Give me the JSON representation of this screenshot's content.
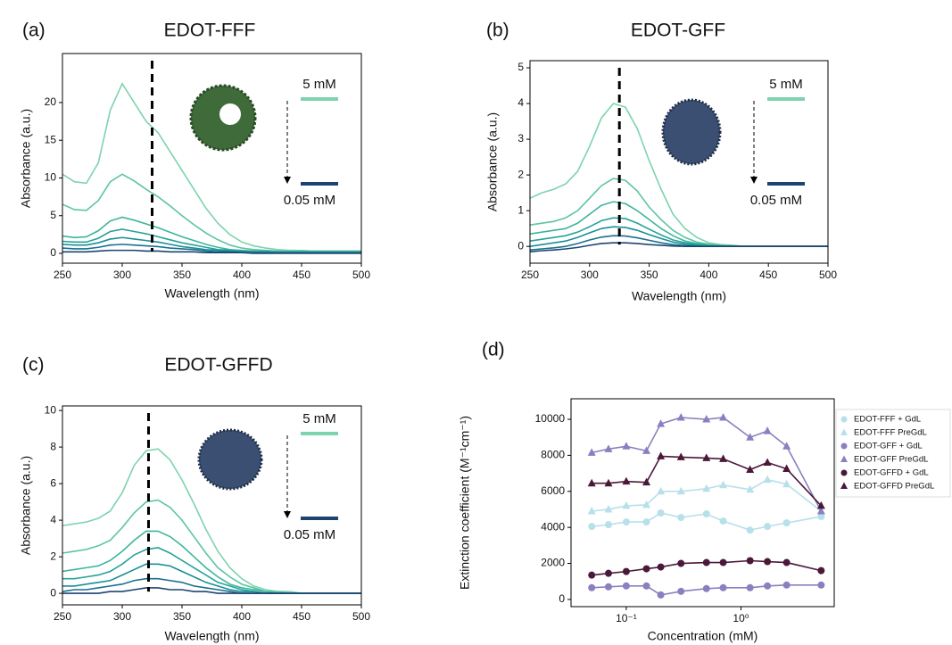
{
  "chart_data": [
    {
      "type": "line",
      "panel": "(a)",
      "title": "EDOT-FFF",
      "x_label": "Wavelength (nm)",
      "y_label": "Absorbance (a.u.)",
      "x": [
        250,
        260,
        270,
        280,
        290,
        300,
        310,
        320,
        330,
        340,
        350,
        360,
        370,
        380,
        390,
        400,
        410,
        420,
        430,
        440,
        450,
        460,
        470,
        480,
        490,
        500
      ],
      "xlim": [
        250,
        500
      ],
      "xticks": [
        250,
        300,
        350,
        400,
        450,
        500
      ],
      "ylim": [
        -1.3,
        26.5
      ],
      "yticks": [
        0,
        5,
        10,
        15,
        20
      ],
      "marker_x": 325,
      "high_label": "5 mM",
      "low_label": "0.05 mM",
      "series": [
        {
          "color": "#7dd3ad",
          "values": [
            10.5,
            9.5,
            9.3,
            12,
            19,
            22.5,
            20,
            17.5,
            16,
            13.5,
            11,
            8.5,
            6,
            4,
            2.5,
            1.5,
            1,
            0.7,
            0.5,
            0.4,
            0.4,
            0.3,
            0.3,
            0.3,
            0.3,
            0.3
          ]
        },
        {
          "color": "#5cc4a2",
          "values": [
            6.5,
            5.8,
            5.7,
            7,
            9.5,
            10.5,
            9.6,
            8.5,
            7.5,
            6.3,
            5,
            3.8,
            2.7,
            1.8,
            1.1,
            0.7,
            0.5,
            0.4,
            0.3,
            0.3,
            0.3,
            0.3,
            0.3,
            0.3,
            0.3,
            0.3
          ]
        },
        {
          "color": "#3db59b",
          "values": [
            2.3,
            2.1,
            2.2,
            3,
            4.3,
            4.8,
            4.4,
            3.9,
            3.4,
            2.8,
            2.2,
            1.7,
            1.2,
            0.8,
            0.5,
            0.4,
            0.3,
            0.3,
            0.2,
            0.2,
            0.2,
            0.2,
            0.2,
            0.2,
            0.2,
            0.2
          ]
        },
        {
          "color": "#25a39a",
          "values": [
            1.6,
            1.5,
            1.5,
            2,
            2.9,
            3.2,
            2.9,
            2.6,
            2.2,
            1.8,
            1.4,
            1.1,
            0.8,
            0.5,
            0.4,
            0.3,
            0.2,
            0.2,
            0.2,
            0.2,
            0.2,
            0.2,
            0.2,
            0.2,
            0.2,
            0.2
          ]
        },
        {
          "color": "#1a8f97",
          "values": [
            1.2,
            1.1,
            1.1,
            1.4,
            1.9,
            2.1,
            1.9,
            1.7,
            1.5,
            1.2,
            0.9,
            0.7,
            0.5,
            0.4,
            0.3,
            0.2,
            0.2,
            0.2,
            0.1,
            0.1,
            0.1,
            0.1,
            0.1,
            0.1,
            0.1,
            0.1
          ]
        },
        {
          "color": "#1b6f8f",
          "values": [
            0.7,
            0.6,
            0.6,
            0.8,
            1.1,
            1.2,
            1.1,
            1,
            0.9,
            0.7,
            0.6,
            0.5,
            0.3,
            0.2,
            0.2,
            0.1,
            0.1,
            0.1,
            0.1,
            0.1,
            0.1,
            0.1,
            0.1,
            0.1,
            0.1,
            0.1
          ]
        },
        {
          "color": "#1d4470",
          "values": [
            0.2,
            0.2,
            0.2,
            0.3,
            0.4,
            0.4,
            0.4,
            0.3,
            0.3,
            0.2,
            0.2,
            0.2,
            0.1,
            0.1,
            0.1,
            0.1,
            0,
            0,
            0,
            0,
            0,
            0,
            0,
            0,
            0,
            0
          ]
        }
      ]
    },
    {
      "type": "line",
      "panel": "(b)",
      "title": "EDOT-GFF",
      "x_label": "Wavelength (nm)",
      "y_label": "Absorbance (a.u.)",
      "x": [
        250,
        260,
        270,
        280,
        290,
        300,
        310,
        320,
        330,
        340,
        350,
        360,
        370,
        380,
        390,
        400,
        410,
        420,
        430,
        440,
        450,
        460,
        470,
        480,
        490,
        500
      ],
      "xlim": [
        250,
        500
      ],
      "xticks": [
        250,
        300,
        350,
        400,
        450,
        500
      ],
      "ylim": [
        -0.47,
        5.2
      ],
      "yticks": [
        0,
        1,
        2,
        3,
        4,
        5
      ],
      "marker_x": 325,
      "high_label": "5 mM",
      "low_label": "0.05 mM",
      "series": [
        {
          "color": "#7dd3ad",
          "values": [
            1.35,
            1.5,
            1.6,
            1.75,
            2.1,
            2.8,
            3.6,
            4,
            3.9,
            3.3,
            2.4,
            1.6,
            0.9,
            0.5,
            0.25,
            0.1,
            0.05,
            0.03,
            0,
            0,
            0,
            0,
            0,
            0,
            0,
            0
          ]
        },
        {
          "color": "#5cc4a2",
          "values": [
            0.6,
            0.65,
            0.7,
            0.8,
            1,
            1.35,
            1.7,
            1.9,
            1.85,
            1.55,
            1.1,
            0.75,
            0.45,
            0.25,
            0.12,
            0.06,
            0.03,
            0.02,
            0,
            0,
            0,
            0,
            0,
            0,
            0,
            0
          ]
        },
        {
          "color": "#3db59b",
          "values": [
            0.35,
            0.4,
            0.45,
            0.5,
            0.65,
            0.9,
            1.15,
            1.25,
            1.2,
            1,
            0.75,
            0.5,
            0.3,
            0.15,
            0.08,
            0.04,
            0.02,
            0,
            0,
            0,
            0,
            0,
            0,
            0,
            0,
            0
          ]
        },
        {
          "color": "#25a39a",
          "values": [
            0.15,
            0.2,
            0.25,
            0.3,
            0.4,
            0.55,
            0.72,
            0.8,
            0.78,
            0.65,
            0.48,
            0.32,
            0.18,
            0.1,
            0.05,
            0.02,
            0,
            0,
            0,
            0,
            0,
            0,
            0,
            0,
            0,
            0
          ]
        },
        {
          "color": "#1a8f97",
          "values": [
            0,
            0.05,
            0.1,
            0.15,
            0.25,
            0.38,
            0.5,
            0.55,
            0.53,
            0.45,
            0.33,
            0.22,
            0.12,
            0.06,
            0.02,
            0,
            0,
            0,
            0,
            0,
            0,
            0,
            0,
            0,
            0,
            0
          ]
        },
        {
          "color": "#1b6f8f",
          "values": [
            -0.1,
            -0.07,
            -0.04,
            0,
            0.08,
            0.18,
            0.26,
            0.3,
            0.29,
            0.24,
            0.17,
            0.1,
            0.05,
            0.02,
            0,
            0,
            0,
            0,
            0,
            0,
            0,
            0,
            0,
            0,
            0,
            0
          ]
        },
        {
          "color": "#1d4470",
          "values": [
            -0.15,
            -0.12,
            -0.1,
            -0.07,
            -0.03,
            0.03,
            0.08,
            0.1,
            0.1,
            0.08,
            0.05,
            0.03,
            0.01,
            0,
            0,
            0,
            0,
            0,
            0,
            0,
            0,
            0,
            0,
            0,
            0,
            0
          ]
        }
      ]
    },
    {
      "type": "line",
      "panel": "(c)",
      "title": "EDOT-GFFD",
      "x_label": "Wavelength (nm)",
      "y_label": "Absorbance (a.u.)",
      "x": [
        250,
        260,
        270,
        280,
        290,
        300,
        310,
        320,
        330,
        340,
        350,
        360,
        370,
        380,
        390,
        400,
        410,
        420,
        430,
        440,
        450,
        460,
        470,
        480,
        490,
        500
      ],
      "xlim": [
        250,
        500
      ],
      "xticks": [
        250,
        300,
        350,
        400,
        450,
        500
      ],
      "ylim": [
        -0.63,
        10.25
      ],
      "yticks": [
        0,
        2,
        4,
        6,
        8,
        10
      ],
      "marker_x": 322,
      "high_label": "5 mM",
      "low_label": "0.05 mM",
      "series": [
        {
          "color": "#7dd3ad",
          "values": [
            3.7,
            3.8,
            3.9,
            4.1,
            4.5,
            5.5,
            7,
            7.8,
            7.9,
            7.3,
            6.2,
            4.9,
            3.5,
            2.3,
            1.4,
            0.8,
            0.4,
            0.2,
            0.1,
            0.1,
            0,
            0,
            0,
            0,
            0,
            0
          ]
        },
        {
          "color": "#5cc4a2",
          "values": [
            2.2,
            2.3,
            2.4,
            2.6,
            2.9,
            3.6,
            4.4,
            5,
            5.1,
            4.7,
            4,
            3.1,
            2.2,
            1.4,
            0.9,
            0.5,
            0.3,
            0.1,
            0.1,
            0,
            0,
            0,
            0,
            0,
            0,
            0
          ]
        },
        {
          "color": "#3db59b",
          "values": [
            1.2,
            1.3,
            1.4,
            1.5,
            1.8,
            2.3,
            2.9,
            3.4,
            3.4,
            3.1,
            2.6,
            2,
            1.4,
            0.9,
            0.5,
            0.3,
            0.2,
            0.1,
            0,
            0,
            0,
            0,
            0,
            0,
            0,
            0
          ]
        },
        {
          "color": "#25a39a",
          "values": [
            0.8,
            0.8,
            0.9,
            1,
            1.2,
            1.6,
            2.1,
            2.4,
            2.5,
            2.2,
            1.8,
            1.4,
            1,
            0.6,
            0.4,
            0.2,
            0.1,
            0,
            0,
            0,
            0,
            0,
            0,
            0,
            0,
            0
          ]
        },
        {
          "color": "#1a8f97",
          "values": [
            0.4,
            0.4,
            0.5,
            0.6,
            0.7,
            1,
            1.3,
            1.6,
            1.6,
            1.5,
            1.2,
            0.9,
            0.6,
            0.4,
            0.2,
            0.1,
            0.1,
            0,
            0,
            0,
            0,
            0,
            0,
            0,
            0,
            0
          ]
        },
        {
          "color": "#1b6f8f",
          "values": [
            0.1,
            0.2,
            0.2,
            0.3,
            0.4,
            0.5,
            0.7,
            0.8,
            0.8,
            0.7,
            0.6,
            0.4,
            0.3,
            0.2,
            0.1,
            0,
            0,
            0,
            0,
            0,
            0,
            0,
            0,
            0,
            0,
            0
          ]
        },
        {
          "color": "#1d4470",
          "values": [
            0,
            0,
            0,
            0,
            0.1,
            0.1,
            0.2,
            0.3,
            0.3,
            0.2,
            0.2,
            0.1,
            0.1,
            0,
            0,
            0,
            0,
            0,
            0,
            0,
            0,
            0,
            0,
            0,
            0,
            0
          ]
        }
      ]
    },
    {
      "type": "line",
      "panel": "(d)",
      "x_label": "Concentration (mM)",
      "y_label": "Extinction coefficient (M⁻¹cm⁻¹)",
      "x": [
        0.05,
        0.07,
        0.1,
        0.15,
        0.2,
        0.3,
        0.5,
        0.7,
        1.2,
        1.7,
        2.5,
        5
      ],
      "xscale": "log",
      "xlim": [
        0.033,
        6.5
      ],
      "xticks": [
        {
          "value": 0.1,
          "label": "10⁻¹"
        },
        {
          "value": 1,
          "label": "10⁰"
        }
      ],
      "ylim": [
        -400,
        11140
      ],
      "yticks": [
        0,
        2000,
        4000,
        6000,
        8000,
        10000
      ],
      "legend": "right",
      "series": [
        {
          "name": "EDOT-FFF + GdL",
          "color": "#b7e0ea",
          "marker": "circle",
          "values": [
            4050,
            4150,
            4300,
            4300,
            4800,
            4550,
            4750,
            4350,
            3850,
            4050,
            4250,
            4600
          ]
        },
        {
          "name": "EDOT-FFF PreGdL",
          "color": "#b7e0ea",
          "marker": "triangle",
          "values": [
            4900,
            5000,
            5200,
            5250,
            6000,
            6000,
            6150,
            6350,
            6100,
            6650,
            6400,
            4900
          ]
        },
        {
          "name": "EDOT-GFF + GdL",
          "color": "#8a80bf",
          "marker": "circle",
          "values": [
            650,
            700,
            750,
            750,
            250,
            450,
            600,
            650,
            650,
            750,
            800,
            800
          ]
        },
        {
          "name": "EDOT-GFF PreGdL",
          "color": "#8a80bf",
          "marker": "triangle",
          "values": [
            8150,
            8350,
            8500,
            8250,
            9750,
            10100,
            10000,
            10100,
            9000,
            9350,
            8500,
            4900
          ]
        },
        {
          "name": "EDOT-GFFD + GdL",
          "color": "#4a1838",
          "marker": "circle",
          "values": [
            1350,
            1450,
            1550,
            1700,
            1800,
            2000,
            2050,
            2050,
            2150,
            2100,
            2050,
            1600
          ]
        },
        {
          "name": "EDOT-GFFD PreGdL",
          "color": "#4a1838",
          "marker": "triangle",
          "values": [
            6450,
            6450,
            6550,
            6500,
            7950,
            7900,
            7850,
            7800,
            7200,
            7600,
            7250,
            5200
          ]
        }
      ]
    }
  ]
}
